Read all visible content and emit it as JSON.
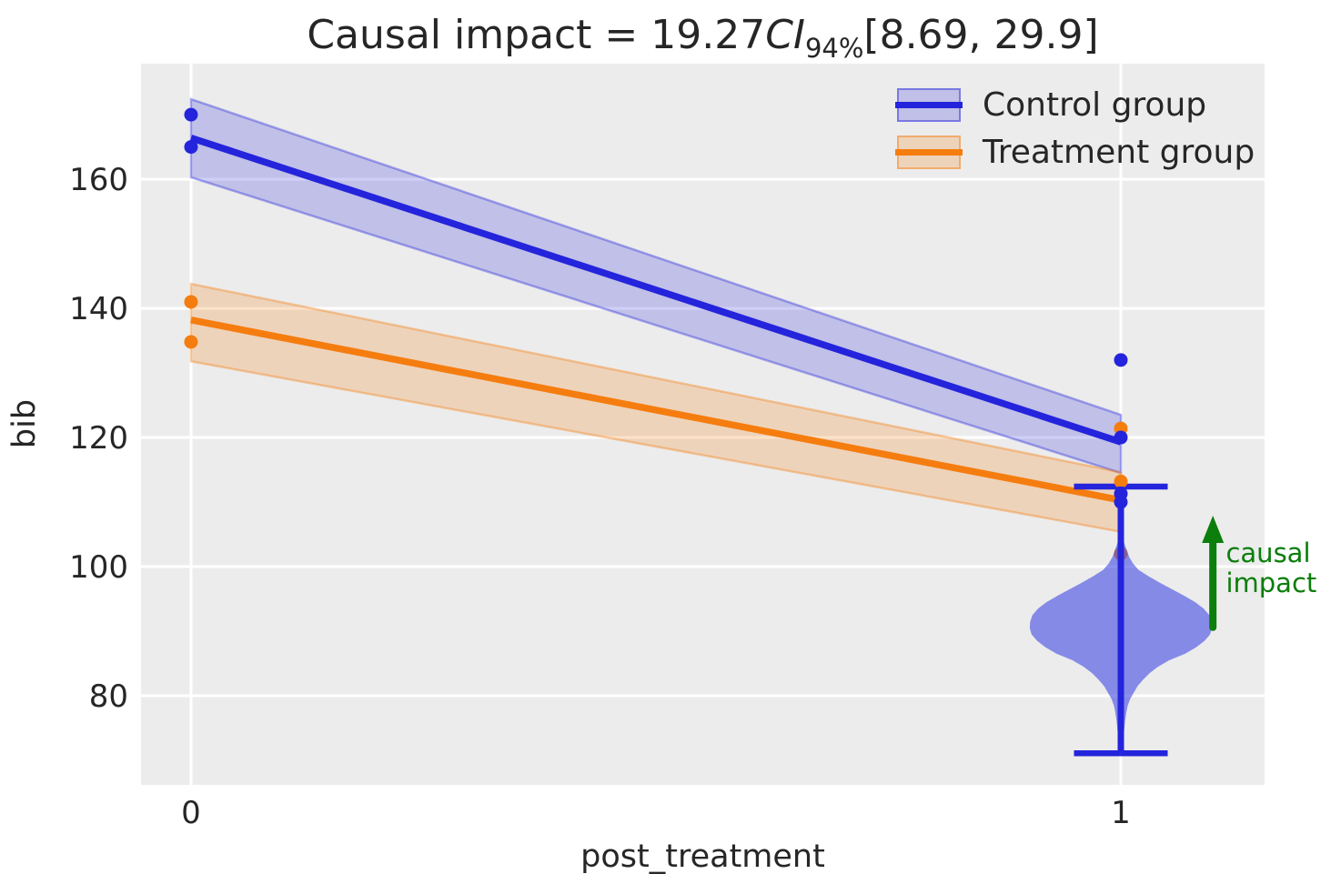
{
  "title": {
    "prefix": "Causal impact = 19.27",
    "ci_symbol": "CI",
    "ci_subscript": "94%",
    "interval": "[8.69, 29.9]"
  },
  "legend": {
    "items": [
      {
        "label": "Control group",
        "color": "#2424dc"
      },
      {
        "label": "Treatment group",
        "color": "#f57d0f"
      }
    ]
  },
  "colors": {
    "control": "#2424dc",
    "treatment": "#f57d0f",
    "violin_fill": "rgba(70,78,228,0.62)",
    "impact_green": "#0b7e0b",
    "plot_bg": "#ececec",
    "grid": "#ffffff",
    "text": "#262626"
  },
  "chart_data": {
    "type": "line",
    "title": "Causal impact = 19.27 CI 94% [8.69, 29.9]",
    "xlabel": "post_treatment",
    "ylabel": "bib",
    "xlim": [
      -0.0538,
      1.1546
    ],
    "ylim": [
      66.2,
      177.9
    ],
    "grid": true,
    "legend_position": "upper right",
    "x_ticks": [
      {
        "v": 0,
        "label": "0"
      },
      {
        "v": 1,
        "label": "1"
      }
    ],
    "y_ticks": [
      {
        "v": 80,
        "label": "80"
      },
      {
        "v": 100,
        "label": "100"
      },
      {
        "v": 120,
        "label": "120"
      },
      {
        "v": 140,
        "label": "140"
      },
      {
        "v": 160,
        "label": "160"
      }
    ],
    "series": [
      {
        "name": "Control group",
        "color": "#2424dc",
        "x": [
          0,
          1
        ],
        "y": [
          166.4,
          119.3
        ],
        "ci_lower": [
          160.3,
          114.5
        ],
        "ci_upper": [
          172.4,
          123.5
        ],
        "scatter": [
          [
            0,
            170
          ],
          [
            0,
            165
          ],
          [
            1,
            132
          ],
          [
            1,
            120
          ],
          [
            1,
            111.3
          ],
          [
            1,
            110
          ]
        ]
      },
      {
        "name": "Treatment group",
        "color": "#f57d0f",
        "x": [
          0,
          1
        ],
        "y": [
          138.2,
          110.3
        ],
        "ci_lower": [
          131.8,
          105.4
        ],
        "ci_upper": [
          143.8,
          114.6
        ],
        "scatter": [
          [
            0,
            141
          ],
          [
            0,
            134.8
          ],
          [
            1,
            121.4
          ],
          [
            1,
            113.2
          ],
          [
            1,
            102
          ]
        ]
      }
    ],
    "posterior_violin": {
      "x": 1,
      "mode": 90.5,
      "fill": "rgba(70,78,228,0.62)",
      "profile": [
        [
          104.6,
          0.002
        ],
        [
          103.5,
          0.004
        ],
        [
          102.5,
          0.0065
        ],
        [
          101.5,
          0.009
        ],
        [
          100.5,
          0.013
        ],
        [
          99.5,
          0.019
        ],
        [
          98.5,
          0.03
        ],
        [
          97.5,
          0.042
        ],
        [
          96.5,
          0.055
        ],
        [
          95.5,
          0.068
        ],
        [
          94.5,
          0.08
        ],
        [
          93.5,
          0.089
        ],
        [
          92.5,
          0.095
        ],
        [
          91.5,
          0.0975
        ],
        [
          90.5,
          0.098
        ],
        [
          89.5,
          0.096
        ],
        [
          88.5,
          0.09
        ],
        [
          87.5,
          0.081
        ],
        [
          86.5,
          0.069
        ],
        [
          85.5,
          0.052
        ],
        [
          84.5,
          0.04
        ],
        [
          83.5,
          0.031
        ],
        [
          82.5,
          0.024
        ],
        [
          81.5,
          0.018
        ],
        [
          80.5,
          0.014
        ],
        [
          79.5,
          0.01
        ],
        [
          78.5,
          0.0075
        ],
        [
          77.5,
          0.006
        ],
        [
          76,
          0.0045
        ],
        [
          74.5,
          0.0035
        ],
        [
          73,
          0.0028
        ],
        [
          71.5,
          0.0022
        ],
        [
          71,
          0.002
        ]
      ]
    },
    "whisker": {
      "x": 1,
      "top": 112.4,
      "bottom": 71.1,
      "cap_halfwidth": 0.0504,
      "color": "#2424dc"
    },
    "impact_arrow": {
      "x": 1.099,
      "from": 90.6,
      "to": 107.9,
      "color": "#0b7e0b",
      "label_lines": [
        "causal",
        "impact"
      ],
      "label_x": 1.113,
      "label_v": [
        102.1,
        97.5
      ]
    }
  }
}
